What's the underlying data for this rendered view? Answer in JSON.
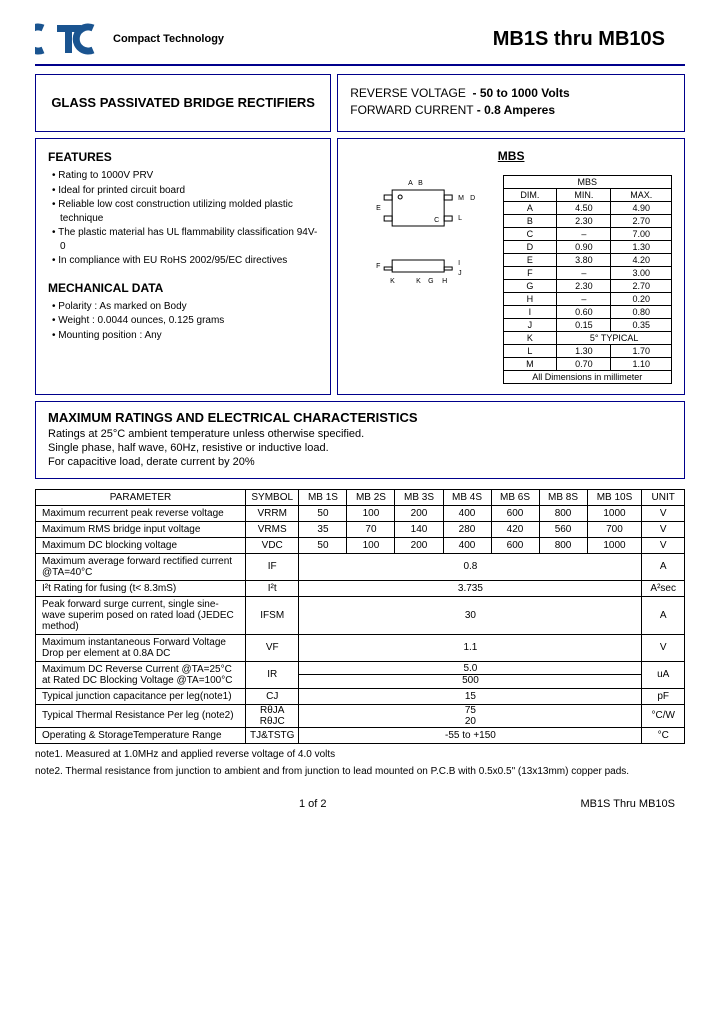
{
  "header": {
    "company": "Compact Technology",
    "title": "MB1S thru MB10S"
  },
  "box_title": "GLASS PASSIVATED BRIDGE RECTIFIERS",
  "specs": {
    "rv_label": "REVERSE VOLTAGE",
    "rv_value": "- 50 to 1000 Volts",
    "fc_label": "FORWARD CURRENT",
    "fc_value": "- 0.8 Amperes"
  },
  "features": {
    "heading": "FEATURES",
    "items": [
      "Rating to 1000V PRV",
      "Ideal for printed circuit board",
      "Reliable low cost construction utilizing molded plastic technique",
      "The plastic material has UL flammability classification 94V-0",
      "In compliance with EU RoHS 2002/95/EC directives"
    ]
  },
  "mechanical": {
    "heading": "MECHANICAL DATA",
    "items": [
      "Polarity : As marked on Body",
      "Weight : 0.0044 ounces, 0.125 grams",
      "Mounting position : Any"
    ]
  },
  "diagram": {
    "heading": "MBS",
    "dim_table": {
      "cap": "MBS",
      "head": [
        "DIM.",
        "MIN.",
        "MAX."
      ],
      "rows": [
        [
          "A",
          "4.50",
          "4.90"
        ],
        [
          "B",
          "2.30",
          "2.70"
        ],
        [
          "C",
          "–",
          "7.00"
        ],
        [
          "D",
          "0.90",
          "1.30"
        ],
        [
          "E",
          "3.80",
          "4.20"
        ],
        [
          "F",
          "–",
          "3.00"
        ],
        [
          "G",
          "2.30",
          "2.70"
        ],
        [
          "H",
          "–",
          "0.20"
        ],
        [
          "I",
          "0.60",
          "0.80"
        ],
        [
          "J",
          "0.15",
          "0.35"
        ]
      ],
      "k_row": [
        "K",
        "5° TYPICAL"
      ],
      "tail": [
        [
          "L",
          "1.30",
          "1.70"
        ],
        [
          "M",
          "0.70",
          "1.10"
        ]
      ],
      "footer": "All Dimensions in millimeter"
    }
  },
  "maxratings": {
    "heading": "MAXIMUM RATINGS AND ELECTRICAL CHARACTERISTICS",
    "line1": "Ratings at 25°C ambient temperature unless otherwise specified.",
    "line2": "Single phase, half wave, 60Hz, resistive or inductive load.",
    "line3": "For capacitive load, derate current by 20%"
  },
  "params": {
    "head": [
      "PARAMETER",
      "SYMBOL",
      "MB 1S",
      "MB 2S",
      "MB 3S",
      "MB 4S",
      "MB 6S",
      "MB 8S",
      "MB 10S",
      "UNIT"
    ],
    "rows_multi": [
      {
        "p": "Maximum recurrent peak reverse voltage",
        "s": "VRRM",
        "v": [
          "50",
          "100",
          "200",
          "400",
          "600",
          "800",
          "1000"
        ],
        "u": "V"
      },
      {
        "p": "Maximum RMS bridge input voltage",
        "s": "VRMS",
        "v": [
          "35",
          "70",
          "140",
          "280",
          "420",
          "560",
          "700"
        ],
        "u": "V"
      },
      {
        "p": "Maximum DC blocking voltage",
        "s": "VDC",
        "v": [
          "50",
          "100",
          "200",
          "400",
          "600",
          "800",
          "1000"
        ],
        "u": "V"
      }
    ],
    "rows_single": [
      {
        "p": "Maximum average forward rectified current @TA=40°C",
        "s": "IF",
        "v": "0.8",
        "u": "A"
      },
      {
        "p": "I²t Rating for fusing (t< 8.3mS)",
        "s": "I²t",
        "v": "3.735",
        "u": "A²sec"
      },
      {
        "p": "Peak forward surge current, single sine-wave superim posed on rated load (JEDEC method)",
        "s": "IFSM",
        "v": "30",
        "u": "A"
      },
      {
        "p": "Maximum instantaneous Forward Voltage Drop per element at 0.8A DC",
        "s": "VF",
        "v": "1.1",
        "u": "V"
      }
    ],
    "ir_row": {
      "p": "Maximum DC Reverse Current @TA=25°C at Rated DC Blocking Voltage @TA=100°C",
      "s": "IR",
      "v1": "5.0",
      "v2": "500",
      "u": "uA"
    },
    "cj_row": {
      "p": "Typical junction capacitance per leg(note1)",
      "s": "CJ",
      "v": "15",
      "u": "pF"
    },
    "th_row": {
      "p": "Typical Thermal Resistance Per leg (note2)",
      "s1": "RθJA",
      "s2": "RθJC",
      "v1": "75",
      "v2": "20",
      "u": "°C/W"
    },
    "temp_row": {
      "p": "Operating & StorageTemperature Range",
      "s": "TJ&TSTG",
      "v": "-55 to +150",
      "u": "°C"
    }
  },
  "notes": {
    "n1": "note1. Measured at 1.0MHz and applied reverse voltage of 4.0 volts",
    "n2": "note2. Thermal resistance from junction to ambient and from junction to lead mounted on P.C.B with 0.5x0.5\" (13x13mm) copper pads."
  },
  "footer": {
    "page": "1 of 2",
    "doc": "MB1S Thru MB10S"
  },
  "colors": {
    "border": "#00008b",
    "logo": "#1a5490"
  }
}
